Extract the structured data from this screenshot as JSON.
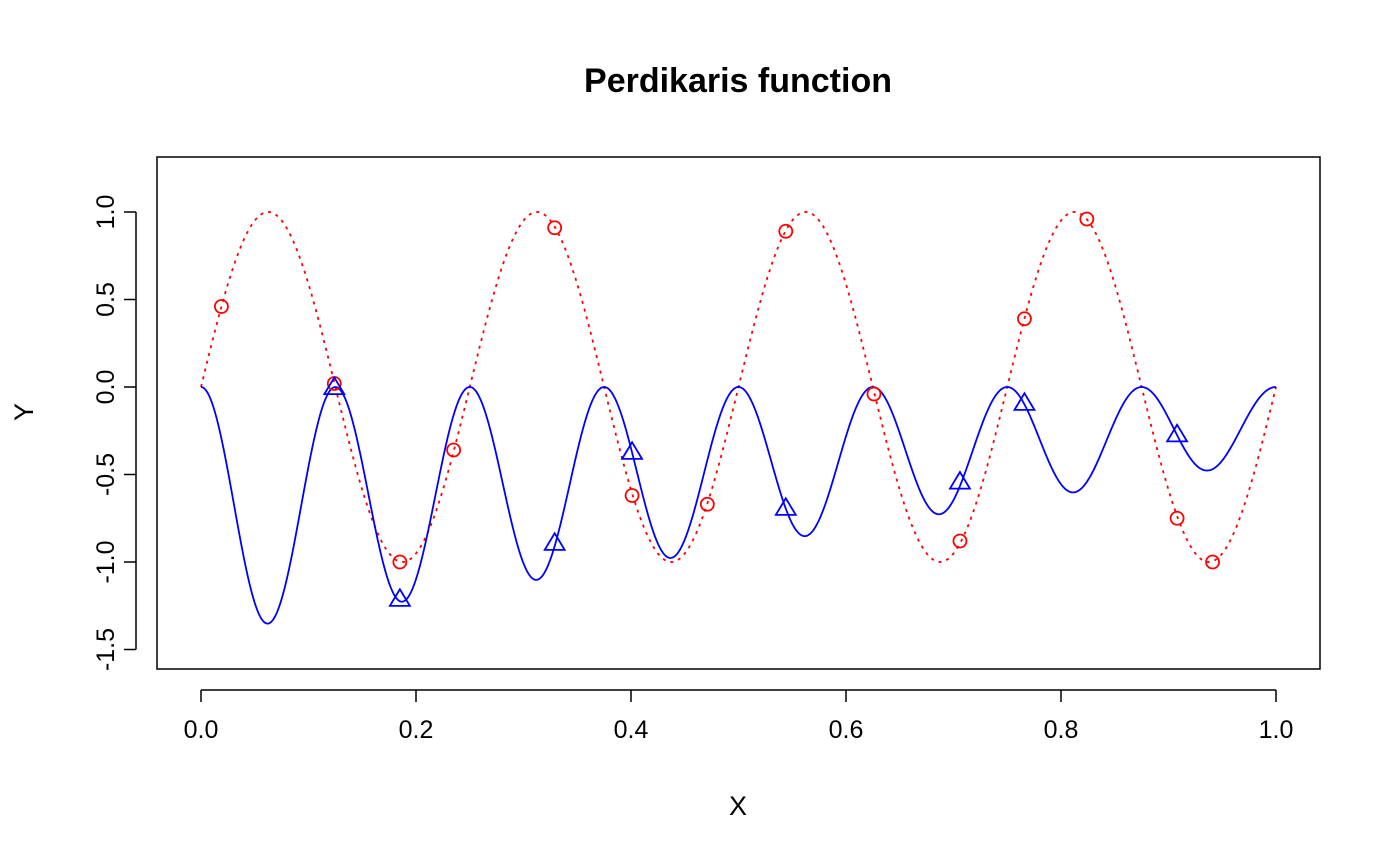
{
  "chart_data": {
    "type": "line",
    "title": "Perdikaris function",
    "xlabel": "X",
    "ylabel": "Y",
    "xlim": [
      0,
      1
    ],
    "ylim": [
      -1.6,
      1.3
    ],
    "x_ticks": [
      0.0,
      0.2,
      0.4,
      0.6,
      0.8,
      1.0
    ],
    "x_tick_labels": [
      "0.0",
      "0.2",
      "0.4",
      "0.6",
      "0.8",
      "1.0"
    ],
    "y_ticks": [
      -1.5,
      -1.0,
      -0.5,
      0.0,
      0.5,
      1.0
    ],
    "y_tick_labels": [
      "-1.5",
      "-1.0",
      "-0.5",
      "0.0",
      "0.5",
      "1.0"
    ],
    "grid": false,
    "legend": "none",
    "series": [
      {
        "kind": "curve",
        "formula": "(x - sqrt(2)) * sin(8*pi*x)^2",
        "line_style": "solid",
        "color": "#0000ff"
      },
      {
        "kind": "curve",
        "formula": "sin(8*pi*x)",
        "line_style": "dotted",
        "color": "#ff0000"
      },
      {
        "kind": "points",
        "marker": "circle",
        "color": "#ff0000",
        "x": [
          0.019,
          0.124,
          0.185,
          0.235,
          0.329,
          0.401,
          0.471,
          0.544,
          0.626,
          0.706,
          0.766,
          0.824,
          0.908,
          0.941
        ],
        "y": [
          0.46,
          0.02,
          -1.0,
          -0.36,
          0.91,
          -0.62,
          -0.67,
          0.89,
          -0.04,
          -0.88,
          0.39,
          0.96,
          -0.75,
          -1.0
        ]
      },
      {
        "kind": "points",
        "marker": "triangle",
        "color": "#0000ff",
        "x": [
          0.124,
          0.185,
          0.329,
          0.401,
          0.544,
          0.706,
          0.766,
          0.908
        ],
        "y": [
          0.0,
          -1.21,
          -0.89,
          -0.37,
          -0.69,
          -0.54,
          -0.09,
          -0.27
        ]
      }
    ]
  }
}
